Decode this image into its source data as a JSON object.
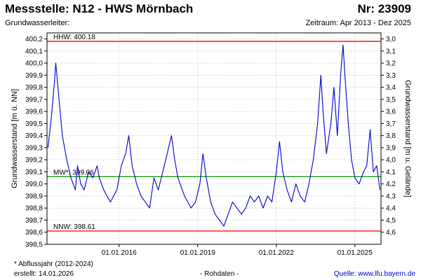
{
  "header": {
    "title": "Messstelle: N12 - HWS Mörnbach",
    "number": "Nr: 23909",
    "subtitle_left": "Grundwasserleiter:",
    "subtitle_right": "Zeitraum: Apr 2013 - Dez 2025"
  },
  "footer": {
    "note": "* Abflussjahr (2012-2024)",
    "created": "erstellt:  14.01.2026",
    "center": "- Rohdaten -",
    "source": "Quelle: www.lfu.bayern.de"
  },
  "colors": {
    "series": "#0000cc",
    "extreme_lines": "#ff0000",
    "mean_line": "#009900",
    "grid": "#c8c8c8"
  },
  "chart_data": {
    "type": "line",
    "title": "",
    "xlabel": "",
    "ylabel": "Grundwasserstand [m ü. NN]",
    "ylabel_right": "Grundwasserstand [m u. Gelände]",
    "xlim": [
      "2013-04-01",
      "2025-12-31"
    ],
    "ylim": [
      398.5,
      400.25
    ],
    "yticks": [
      "398,5",
      "398,6",
      "398,7",
      "398,8",
      "398,9",
      "399,0",
      "399,1",
      "399,2",
      "399,3",
      "399,4",
      "399,5",
      "399,6",
      "399,7",
      "399,8",
      "399,9",
      "400,0",
      "400,1",
      "400,2"
    ],
    "yticks_right": [
      "3,0",
      "3,1",
      "3,2",
      "3,3",
      "3,4",
      "3,5",
      "3,6",
      "3,7",
      "3,8",
      "3,9",
      "4,0",
      "4,1",
      "4,2",
      "4,3",
      "4,4",
      "4,5",
      "4,6"
    ],
    "right_axis_ref": 403.2,
    "xticks": [
      {
        "date": "2016-01-01",
        "label": "01.01.2016"
      },
      {
        "date": "2019-01-01",
        "label": "01.01.2019"
      },
      {
        "date": "2022-01-01",
        "label": "01.01.2022"
      },
      {
        "date": "2025-01-01",
        "label": "01.01.2025"
      }
    ],
    "grid": true,
    "reference_lines": [
      {
        "label": "HHW: 400.18",
        "value": 400.18,
        "color": "#ff0000"
      },
      {
        "label": "MW*: 399.06",
        "value": 399.06,
        "color": "#009900"
      },
      {
        "label": "NNW: 398.61",
        "value": 398.61,
        "color": "#ff0000"
      }
    ],
    "series": [
      {
        "color": "#0000cc",
        "points": [
          [
            "2013-04-15",
            399.3
          ],
          [
            "2013-06-01",
            399.55
          ],
          [
            "2013-07-15",
            399.85
          ],
          [
            "2013-08-01",
            400.0
          ],
          [
            "2013-09-15",
            399.7
          ],
          [
            "2013-11-01",
            399.4
          ],
          [
            "2014-01-01",
            399.2
          ],
          [
            "2014-03-01",
            399.05
          ],
          [
            "2014-05-01",
            398.95
          ],
          [
            "2014-06-01",
            399.15
          ],
          [
            "2014-07-15",
            399.0
          ],
          [
            "2014-09-01",
            398.95
          ],
          [
            "2014-11-01",
            399.1
          ],
          [
            "2015-01-01",
            399.05
          ],
          [
            "2015-03-01",
            399.15
          ],
          [
            "2015-04-01",
            399.05
          ],
          [
            "2015-06-01",
            398.95
          ],
          [
            "2015-09-01",
            398.85
          ],
          [
            "2015-12-01",
            398.95
          ],
          [
            "2016-02-01",
            399.15
          ],
          [
            "2016-04-01",
            399.25
          ],
          [
            "2016-05-15",
            399.4
          ],
          [
            "2016-07-01",
            399.15
          ],
          [
            "2016-09-01",
            399.0
          ],
          [
            "2016-11-01",
            398.9
          ],
          [
            "2017-01-01",
            398.85
          ],
          [
            "2017-03-01",
            398.8
          ],
          [
            "2017-05-01",
            399.05
          ],
          [
            "2017-07-01",
            398.95
          ],
          [
            "2017-09-01",
            399.1
          ],
          [
            "2017-11-01",
            399.25
          ],
          [
            "2018-01-01",
            399.4
          ],
          [
            "2018-02-15",
            399.2
          ],
          [
            "2018-04-01",
            399.05
          ],
          [
            "2018-07-01",
            398.9
          ],
          [
            "2018-10-01",
            398.8
          ],
          [
            "2018-12-01",
            398.85
          ],
          [
            "2019-02-01",
            399.0
          ],
          [
            "2019-03-15",
            399.25
          ],
          [
            "2019-05-01",
            399.05
          ],
          [
            "2019-07-01",
            398.85
          ],
          [
            "2019-09-01",
            398.75
          ],
          [
            "2019-11-01",
            398.7
          ],
          [
            "2020-01-01",
            398.65
          ],
          [
            "2020-03-01",
            398.75
          ],
          [
            "2020-05-01",
            398.85
          ],
          [
            "2020-07-01",
            398.8
          ],
          [
            "2020-09-01",
            398.75
          ],
          [
            "2020-11-01",
            398.8
          ],
          [
            "2021-01-01",
            398.9
          ],
          [
            "2021-03-01",
            398.85
          ],
          [
            "2021-05-01",
            398.9
          ],
          [
            "2021-07-01",
            398.8
          ],
          [
            "2021-09-01",
            398.9
          ],
          [
            "2021-11-01",
            398.85
          ],
          [
            "2022-01-01",
            399.1
          ],
          [
            "2022-02-15",
            399.35
          ],
          [
            "2022-04-01",
            399.1
          ],
          [
            "2022-06-01",
            398.95
          ],
          [
            "2022-08-01",
            398.85
          ],
          [
            "2022-10-01",
            399.0
          ],
          [
            "2022-12-01",
            398.9
          ],
          [
            "2023-02-01",
            398.85
          ],
          [
            "2023-04-01",
            399.0
          ],
          [
            "2023-06-01",
            399.2
          ],
          [
            "2023-08-01",
            399.5
          ],
          [
            "2023-09-15",
            399.9
          ],
          [
            "2023-10-15",
            399.6
          ],
          [
            "2023-12-01",
            399.25
          ],
          [
            "2024-02-01",
            399.5
          ],
          [
            "2024-03-15",
            399.8
          ],
          [
            "2024-05-01",
            399.4
          ],
          [
            "2024-06-15",
            399.9
          ],
          [
            "2024-07-20",
            400.15
          ],
          [
            "2024-08-20",
            399.85
          ],
          [
            "2024-10-01",
            399.5
          ],
          [
            "2024-11-15",
            399.2
          ],
          [
            "2025-01-01",
            399.05
          ],
          [
            "2025-03-01",
            399.0
          ],
          [
            "2025-05-01",
            399.1
          ],
          [
            "2025-06-15",
            399.15
          ],
          [
            "2025-08-01",
            399.45
          ],
          [
            "2025-09-15",
            399.1
          ],
          [
            "2025-11-01",
            399.15
          ],
          [
            "2025-12-15",
            398.95
          ]
        ]
      }
    ]
  }
}
